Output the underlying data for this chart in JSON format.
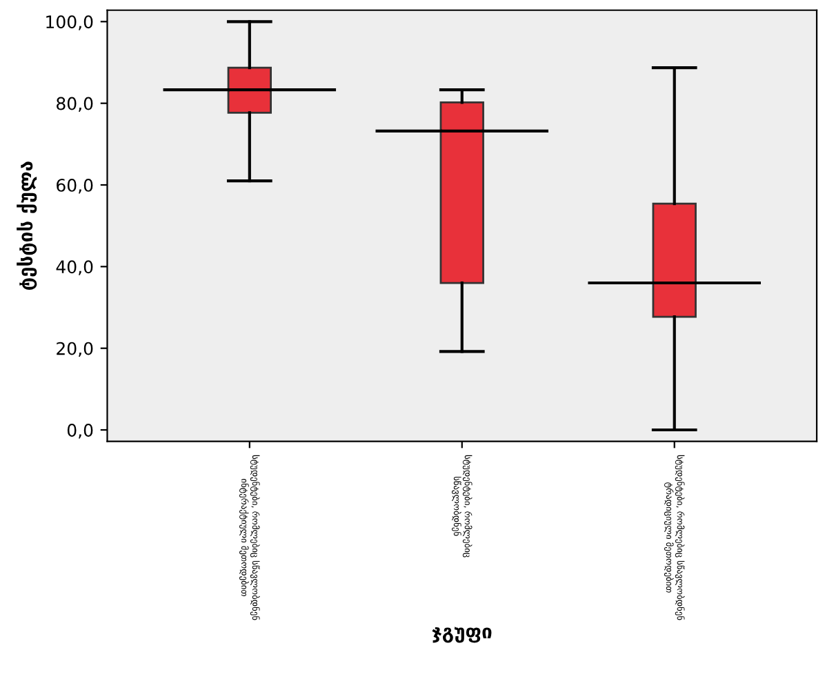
{
  "chart_data": {
    "type": "box",
    "xlabel": "ჯგუფი",
    "ylabel": "ტესტის ქულა",
    "categories": [
      "სტუდენტები, რომლებიც სწავლობდნენ\nინტერაქტიული მეთოდებით",
      "სტუდენტები, რომლებიც\nსწავლობდნენ",
      "სტუდენტები, რომლებიც სწავლობდნენ\nტრადიციული მეთოდებით"
    ],
    "color": "#e8313a",
    "boxes": [
      {
        "low": 61,
        "q1": 77.7,
        "median": 83.3,
        "q3": 88.7,
        "high": 100
      },
      {
        "low": 19.2,
        "q1": 36,
        "median": 73.2,
        "q3": 80.2,
        "high": 83.3
      },
      {
        "low": 0,
        "q1": 27.7,
        "median": 36,
        "q3": 55.4,
        "high": 88.7
      }
    ],
    "ylim": [
      -2.8,
      102.8
    ],
    "yticks": [
      {
        "value": 0,
        "label": "0,0"
      },
      {
        "value": 20,
        "label": "20,0"
      },
      {
        "value": 40,
        "label": "40,0"
      },
      {
        "value": 60,
        "label": "60,0"
      },
      {
        "value": 80,
        "label": "80,0"
      },
      {
        "value": 100,
        "label": "100,0"
      }
    ],
    "grid": false
  }
}
